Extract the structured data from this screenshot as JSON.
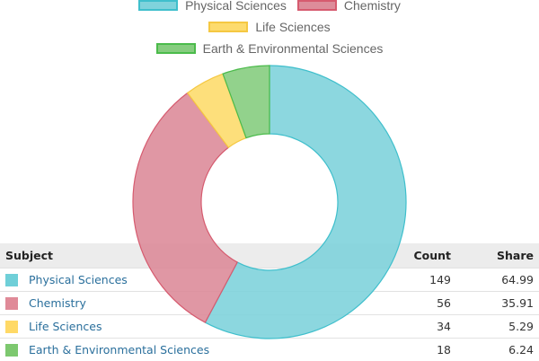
{
  "chart_data": {
    "type": "pie",
    "variant": "doughnut",
    "legend_position": "top",
    "categories": [
      "Physical Sciences",
      "Chemistry",
      "Life Sciences",
      "Earth & Environmental Sciences"
    ],
    "values": [
      64.99,
      35.91,
      5.29,
      6.24
    ],
    "colors": [
      "#7fd3dc",
      "#dd8c9a",
      "#fddb6d",
      "#86cd7f"
    ],
    "borders": [
      "#3fbfcc",
      "#d65b6f",
      "#f5c842",
      "#4bbb4b"
    ]
  },
  "table": {
    "headers": {
      "subject": "Subject",
      "count": "Count",
      "share": "Share"
    },
    "rows": [
      {
        "subject": "Physical Sciences",
        "count": "149",
        "share": "64.99",
        "color": "#6fcfd8"
      },
      {
        "subject": "Chemistry",
        "count": "56",
        "share": "35.91",
        "color": "#e08a98"
      },
      {
        "subject": "Life Sciences",
        "count": "34",
        "share": "5.29",
        "color": "#ffd966"
      },
      {
        "subject": "Earth & Environmental Sciences",
        "count": "18",
        "share": "6.24",
        "color": "#7dc86f"
      }
    ]
  }
}
